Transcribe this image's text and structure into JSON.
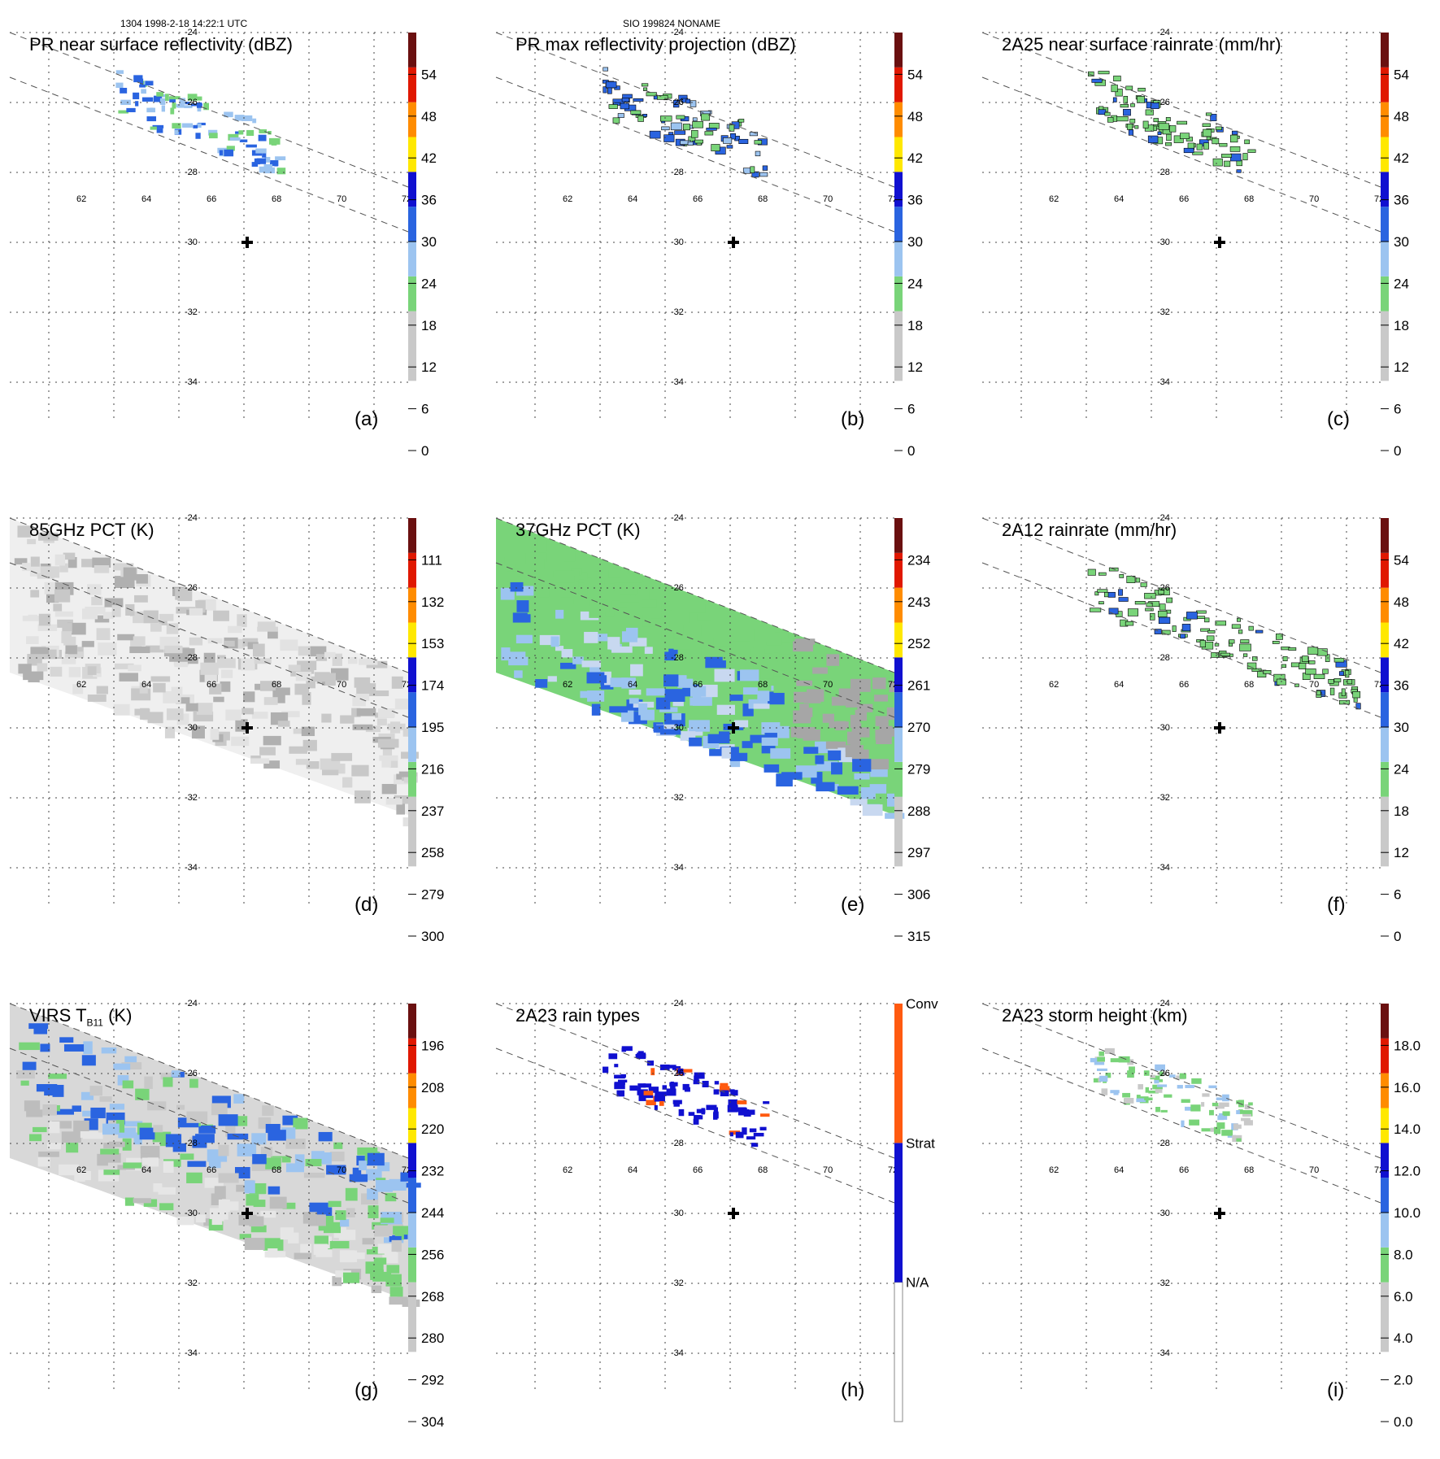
{
  "header": {
    "left": "1304 1998-2-18 14:22:1 UTC",
    "center": "SIO 199824 NONAME"
  },
  "map": {
    "lon_ticks": [
      "62",
      "64",
      "66",
      "68",
      "70",
      "72"
    ],
    "lat_ticks": [
      "-24",
      "-26",
      "-28",
      "-30",
      "-32",
      "-34"
    ]
  },
  "colors": {
    "white": "#ffffff",
    "lgray": "#c9c9c9",
    "green": "#79d479",
    "lblue": "#9cc4f0",
    "blue": "#2a64e0",
    "dblue": "#1010d0",
    "yellow": "#ffe800",
    "orange": "#ff8c00",
    "red": "#e01800",
    "dred": "#6a1010",
    "cell_outline": "#000000"
  },
  "chart_data": [
    {
      "id": "a",
      "type": "heatmap",
      "title": "PR near surface reflectivity (dBZ)",
      "panel_label": "(a)",
      "colorbar_ticks": [
        "0",
        "6",
        "12",
        "18",
        "24",
        "30",
        "36",
        "42",
        "48",
        "54"
      ],
      "colorbar_range": [
        0,
        60
      ]
    },
    {
      "id": "b",
      "type": "heatmap",
      "title": "PR max reflectivity projection (dBZ)",
      "panel_label": "(b)",
      "colorbar_ticks": [
        "0",
        "6",
        "12",
        "18",
        "24",
        "30",
        "36",
        "42",
        "48",
        "54"
      ],
      "colorbar_range": [
        0,
        60
      ]
    },
    {
      "id": "c",
      "type": "heatmap",
      "title": "2A25 near surface rainrate (mm/hr)",
      "panel_label": "(c)",
      "colorbar_ticks": [
        "0",
        "6",
        "12",
        "18",
        "24",
        "30",
        "36",
        "42",
        "48",
        "54"
      ],
      "colorbar_range": [
        0,
        60
      ]
    },
    {
      "id": "d",
      "type": "heatmap",
      "title": "85GHz PCT (K)",
      "panel_label": "(d)",
      "colorbar_ticks": [
        "300",
        "279",
        "258",
        "237",
        "216",
        "195",
        "174",
        "153",
        "132",
        "111"
      ],
      "colorbar_range": [
        300,
        90
      ]
    },
    {
      "id": "e",
      "type": "heatmap",
      "title": "37GHz PCT (K)",
      "panel_label": "(e)",
      "colorbar_ticks": [
        "315",
        "306",
        "297",
        "288",
        "279",
        "270",
        "261",
        "252",
        "243",
        "234"
      ],
      "colorbar_range": [
        315,
        225
      ]
    },
    {
      "id": "f",
      "type": "heatmap",
      "title": "2A12 rainrate (mm/hr)",
      "panel_label": "(f)",
      "colorbar_ticks": [
        "0",
        "6",
        "12",
        "18",
        "24",
        "30",
        "36",
        "42",
        "48",
        "54"
      ],
      "colorbar_range": [
        0,
        60
      ]
    },
    {
      "id": "g",
      "type": "heatmap",
      "title": "VIRS T",
      "title_sub": "B11",
      "title_tail": " (K)",
      "panel_label": "(g)",
      "colorbar_ticks": [
        "304",
        "292",
        "280",
        "268",
        "256",
        "244",
        "232",
        "220",
        "208",
        "196"
      ],
      "colorbar_range": [
        304,
        184
      ]
    },
    {
      "id": "h",
      "type": "heatmap",
      "title": "2A23 rain types",
      "panel_label": "(h)",
      "categories": [
        "N/A",
        "Strat",
        "Conv"
      ]
    },
    {
      "id": "i",
      "type": "heatmap",
      "title": "2A23 storm height (km)",
      "panel_label": "(i)",
      "colorbar_ticks": [
        "0.0",
        "2.0",
        "4.0",
        "6.0",
        "8.0",
        "10.0",
        "12.0",
        "14.0",
        "16.0",
        "18.0"
      ],
      "colorbar_range": [
        0,
        20
      ]
    }
  ]
}
